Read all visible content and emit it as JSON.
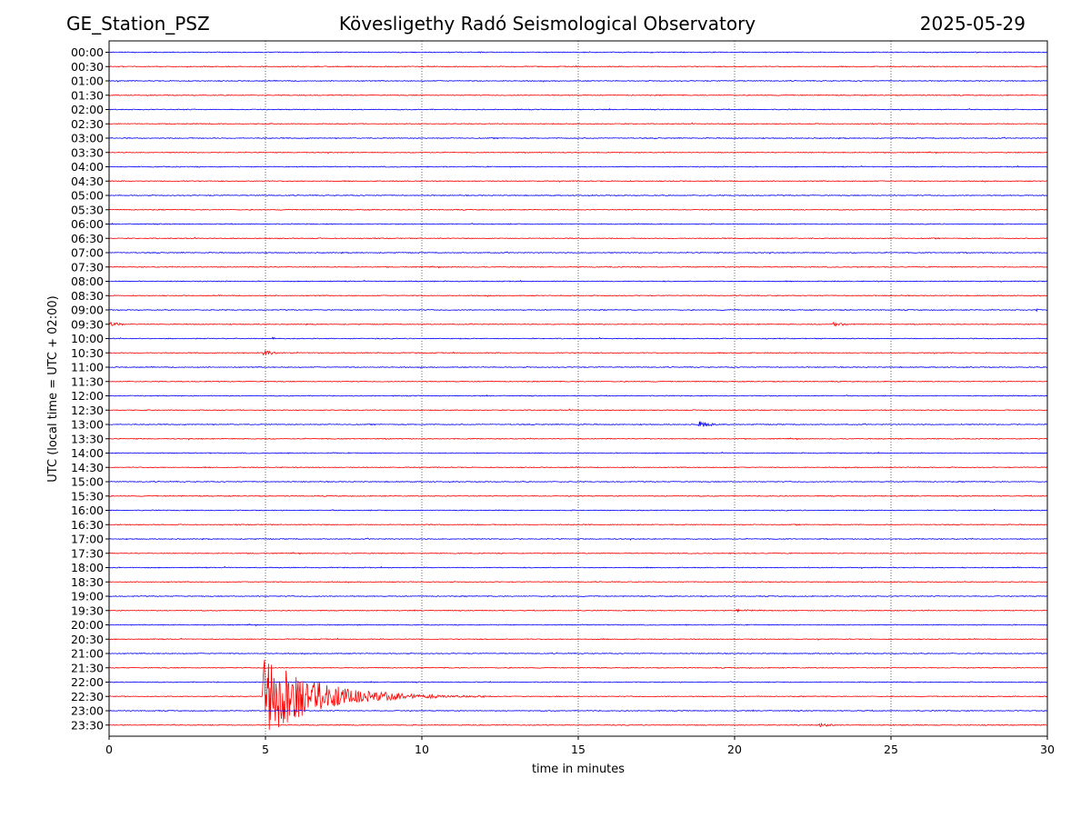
{
  "header": {
    "station": "GE_Station_PSZ",
    "observatory": "Kövesligethy Radó Seismological Observatory",
    "date": "2025-05-29"
  },
  "chart_data": {
    "type": "line",
    "title": "Kövesligethy Radó Seismological Observatory",
    "xlabel": "time in minutes",
    "ylabel": "UTC (local time = UTC + 02:00)",
    "xlim": [
      0,
      30
    ],
    "x_ticks": [
      0,
      5,
      10,
      15,
      20,
      25,
      30
    ],
    "vertical_gridlines_at": [
      5,
      10,
      15,
      20,
      25
    ],
    "grid": "vertical dotted",
    "trace_colors": [
      "#0000ff",
      "#ff0000"
    ],
    "rows": [
      "00:00",
      "00:30",
      "01:00",
      "01:30",
      "02:00",
      "02:30",
      "03:00",
      "03:30",
      "04:00",
      "04:30",
      "05:00",
      "05:30",
      "06:00",
      "06:30",
      "07:00",
      "07:30",
      "08:00",
      "08:30",
      "09:00",
      "09:30",
      "10:00",
      "10:30",
      "11:00",
      "11:30",
      "12:00",
      "12:30",
      "13:00",
      "13:30",
      "14:00",
      "14:30",
      "15:00",
      "15:30",
      "16:00",
      "16:30",
      "17:00",
      "17:30",
      "18:00",
      "18:30",
      "19:00",
      "19:30",
      "20:00",
      "20:30",
      "21:00",
      "21:30",
      "22:00",
      "22:30",
      "23:00",
      "23:30"
    ],
    "events": [
      {
        "row": "09:00",
        "start_min": 29.6,
        "duration_min": 0.4,
        "amplitude": 0.2
      },
      {
        "row": "09:30",
        "start_min": 0.0,
        "duration_min": 1.2,
        "amplitude": 0.22
      },
      {
        "row": "09:30",
        "start_min": 23.1,
        "duration_min": 1.6,
        "amplitude": 0.2
      },
      {
        "row": "10:00",
        "start_min": 5.2,
        "duration_min": 0.3,
        "amplitude": 0.12
      },
      {
        "row": "10:30",
        "start_min": 4.9,
        "duration_min": 1.1,
        "amplitude": 0.35
      },
      {
        "row": "13:00",
        "start_min": 18.8,
        "duration_min": 1.6,
        "amplitude": 0.28
      },
      {
        "row": "19:30",
        "start_min": 20.0,
        "duration_min": 2.4,
        "amplitude": 0.12
      },
      {
        "row": "22:30",
        "start_min": 4.9,
        "duration_min": 7.5,
        "amplitude": 3.0
      },
      {
        "row": "23:30",
        "start_min": 22.7,
        "duration_min": 1.6,
        "amplitude": 0.14
      }
    ]
  }
}
